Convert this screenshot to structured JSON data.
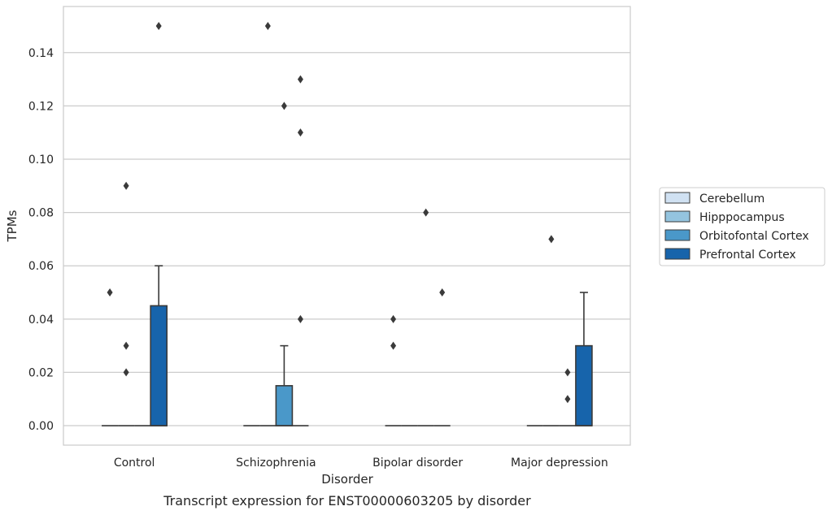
{
  "chart_data": {
    "type": "box",
    "xlabel": "Disorder",
    "ylabel": "TPMs",
    "caption": "Transcript expression for ENST00000603205 by disorder",
    "categories": [
      "Control",
      "Schizophrenia",
      "Bipolar disorder",
      "Major depression"
    ],
    "ylim": [
      -0.0073,
      0.1573
    ],
    "yticks": [
      0.0,
      0.02,
      0.04,
      0.06,
      0.08,
      0.1,
      0.12,
      0.14
    ],
    "ytick_labels": [
      "0.00",
      "0.02",
      "0.04",
      "0.06",
      "0.08",
      "0.10",
      "0.12",
      "0.14"
    ],
    "grid": "horizontal",
    "legend_position": "right",
    "series": [
      {
        "name": "Cerebellum",
        "color": "#d0e1f2",
        "boxes": [
          {
            "q1": 0,
            "median": 0,
            "q3": 0,
            "whisker_low": 0,
            "whisker_high": 0,
            "outliers": [
              0.05
            ]
          },
          {
            "q1": 0,
            "median": 0,
            "q3": 0,
            "whisker_low": 0,
            "whisker_high": 0,
            "outliers": []
          },
          {
            "q1": 0,
            "median": 0,
            "q3": 0,
            "whisker_low": 0,
            "whisker_high": 0,
            "outliers": [
              0.04,
              0.03
            ]
          },
          {
            "q1": 0,
            "median": 0,
            "q3": 0,
            "whisker_low": 0,
            "whisker_high": 0,
            "outliers": []
          }
        ]
      },
      {
        "name": "Hipppocampus",
        "color": "#94c4df",
        "boxes": [
          {
            "q1": 0,
            "median": 0,
            "q3": 0,
            "whisker_low": 0,
            "whisker_high": 0,
            "outliers": [
              0.09,
              0.03,
              0.02
            ]
          },
          {
            "q1": 0,
            "median": 0,
            "q3": 0,
            "whisker_low": 0,
            "whisker_high": 0,
            "outliers": [
              0.15
            ]
          },
          {
            "q1": 0,
            "median": 0,
            "q3": 0,
            "whisker_low": 0,
            "whisker_high": 0,
            "outliers": []
          },
          {
            "q1": 0,
            "median": 0,
            "q3": 0,
            "whisker_low": 0,
            "whisker_high": 0,
            "outliers": [
              0.07
            ]
          }
        ]
      },
      {
        "name": "Orbitofontal Cortex",
        "color": "#4a98c9",
        "boxes": [
          {
            "q1": 0,
            "median": 0,
            "q3": 0,
            "whisker_low": 0,
            "whisker_high": 0,
            "outliers": []
          },
          {
            "q1": 0,
            "median": 0,
            "q3": 0.015,
            "whisker_low": 0,
            "whisker_high": 0.03,
            "outliers": [
              0.12
            ]
          },
          {
            "q1": 0,
            "median": 0,
            "q3": 0,
            "whisker_low": 0,
            "whisker_high": 0,
            "outliers": [
              0.08
            ]
          },
          {
            "q1": 0,
            "median": 0,
            "q3": 0,
            "whisker_low": 0,
            "whisker_high": 0,
            "outliers": [
              0.02,
              0.01
            ]
          }
        ]
      },
      {
        "name": "Prefrontal Cortex",
        "color": "#1764ab",
        "boxes": [
          {
            "q1": 0,
            "median": 0,
            "q3": 0.045,
            "whisker_low": 0,
            "whisker_high": 0.06,
            "outliers": [
              0.15
            ]
          },
          {
            "q1": 0,
            "median": 0,
            "q3": 0,
            "whisker_low": 0,
            "whisker_high": 0,
            "outliers": [
              0.13,
              0.11,
              0.04
            ]
          },
          {
            "q1": 0,
            "median": 0,
            "q3": 0,
            "whisker_low": 0,
            "whisker_high": 0,
            "outliers": [
              0.05
            ]
          },
          {
            "q1": 0,
            "median": 0,
            "q3": 0.03,
            "whisker_low": 0,
            "whisker_high": 0.05,
            "outliers": []
          }
        ]
      }
    ]
  }
}
